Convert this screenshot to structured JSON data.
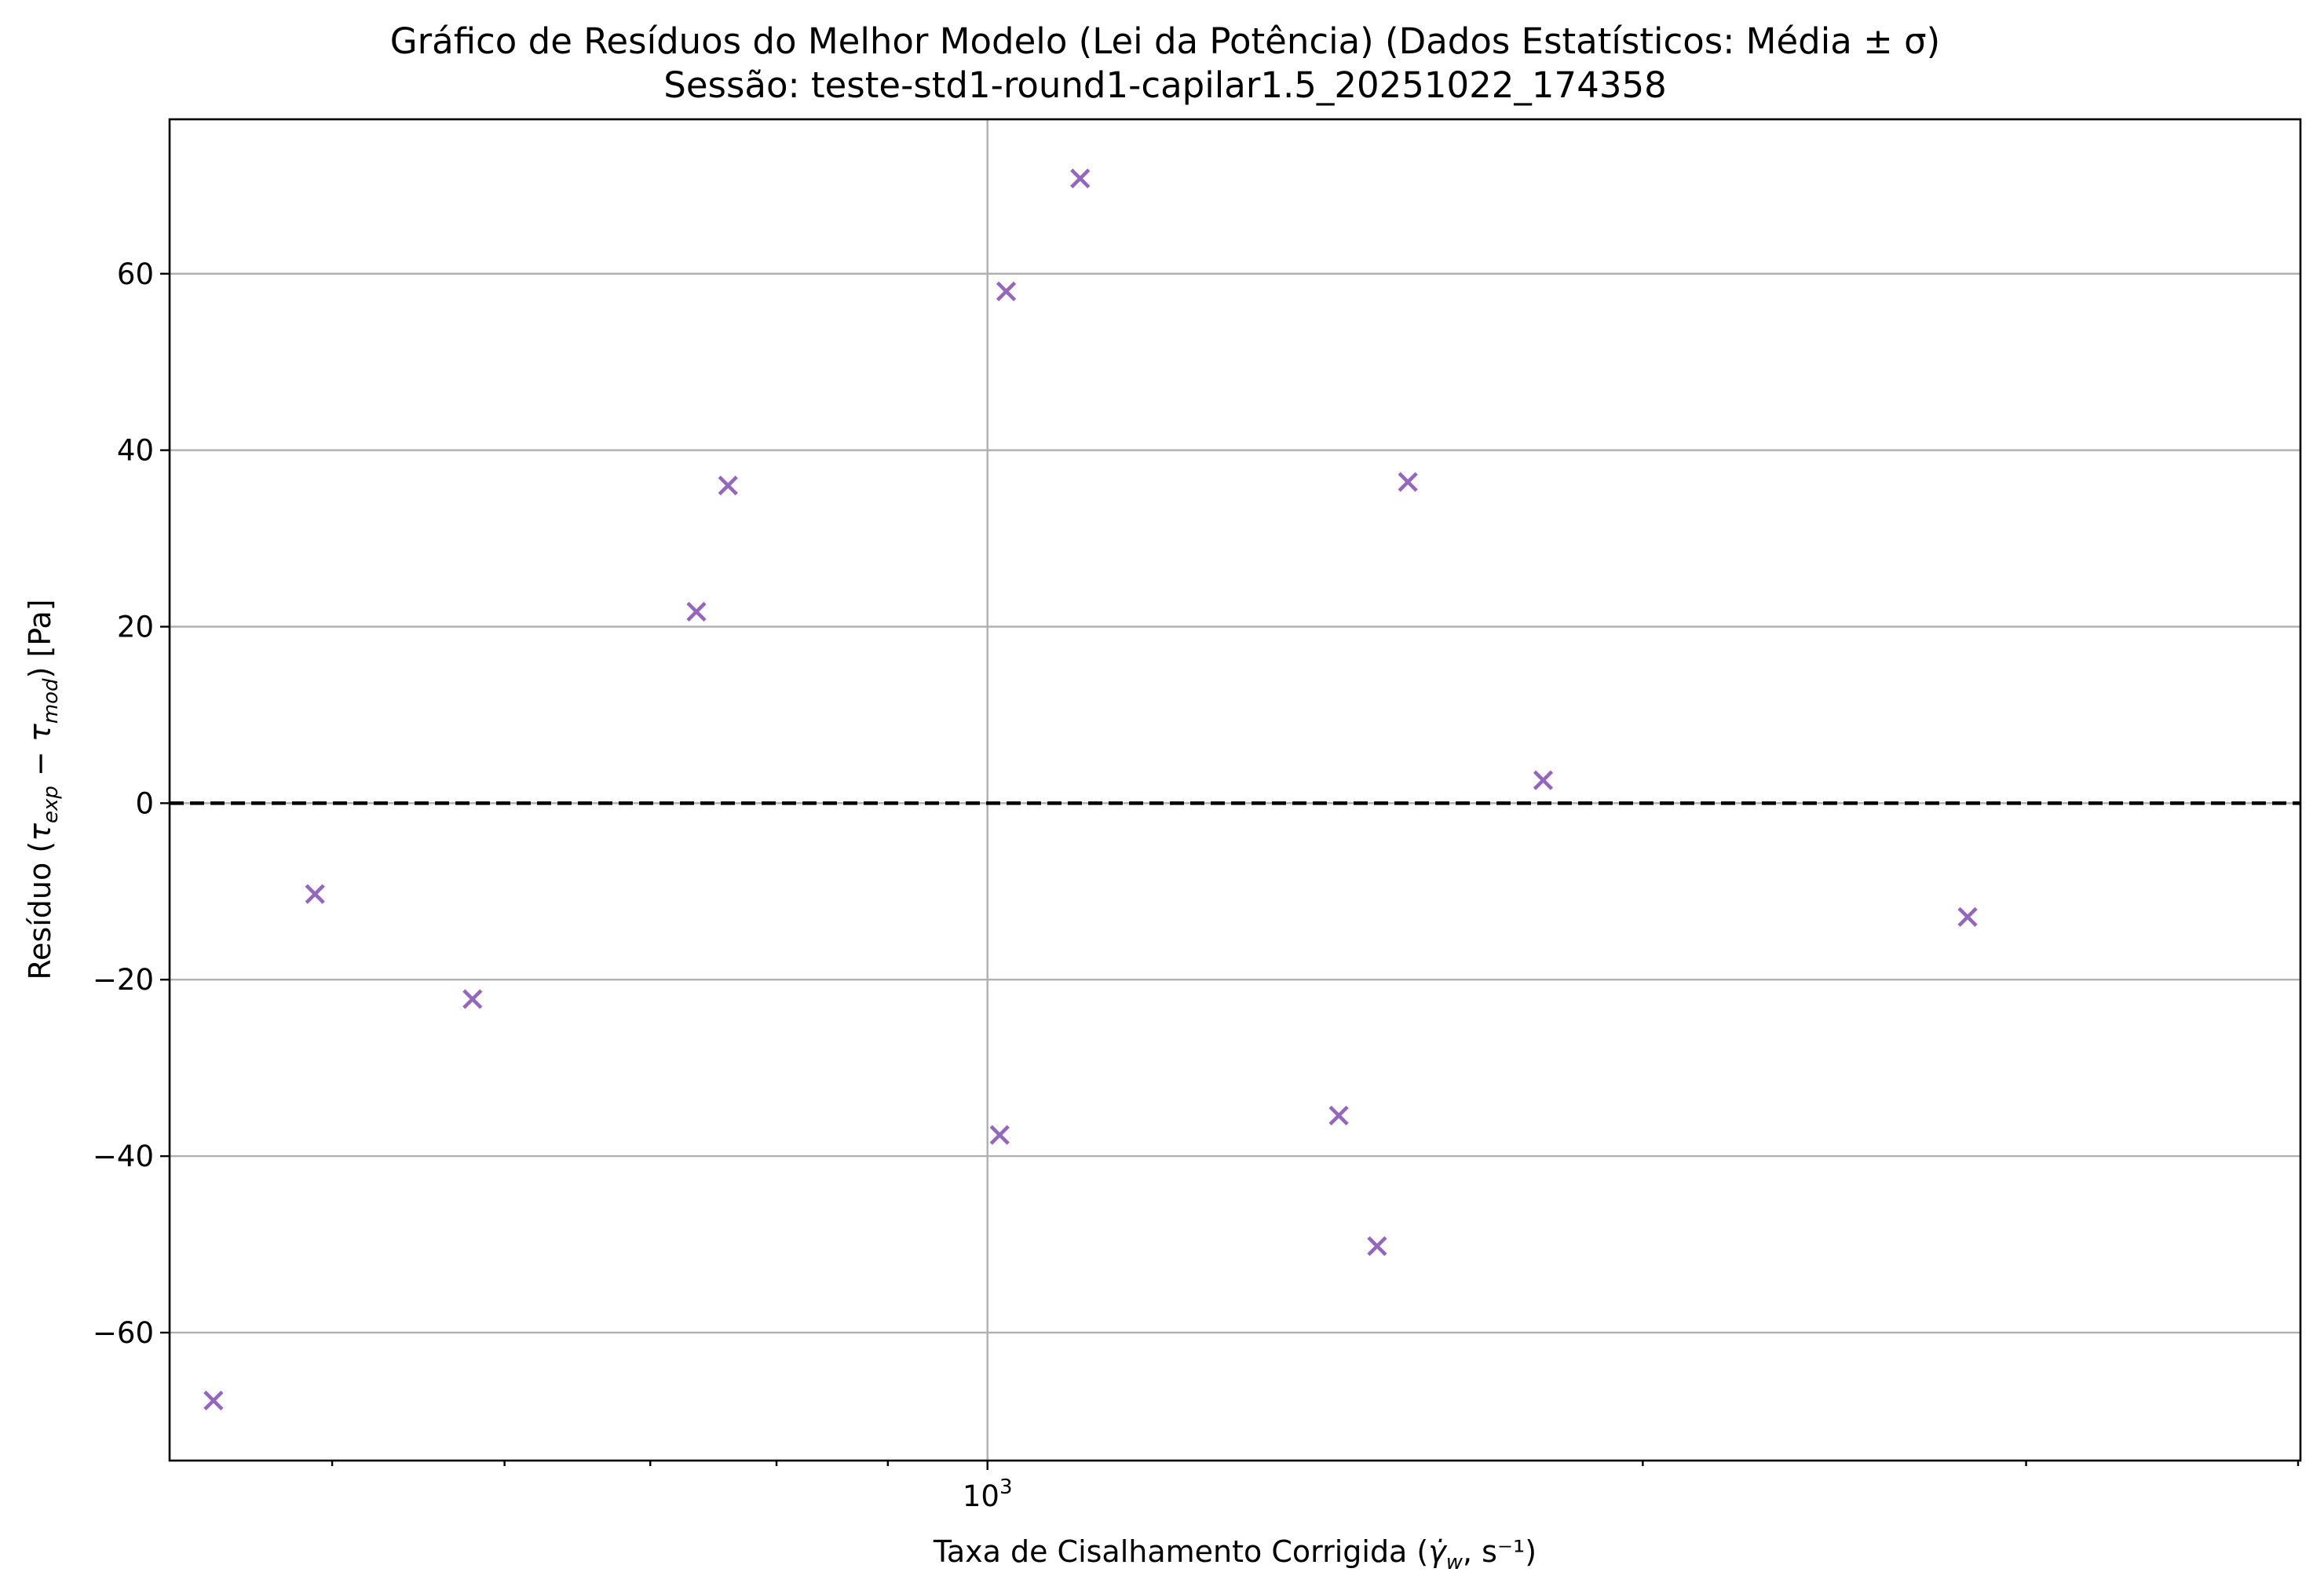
{
  "chart_data": {
    "type": "scatter",
    "title_line1": "Gráfico de Resíduos do Melhor Modelo (Lei da Potência) (Dados Estatísticos: Média ± σ)",
    "title_line2": "Sessão: teste-std1-round1-capilar1.5_20251022_174358",
    "xlabel_prefix": "Taxa de Cisalhamento Corrigida (",
    "xlabel_symbol": "γ̇",
    "xlabel_sub": "w",
    "xlabel_suffix": ", s⁻¹)",
    "ylabel_prefix": "Resíduo (",
    "ylabel_t1": "τ",
    "ylabel_sub1": "exp",
    "ylabel_mid": " − ",
    "ylabel_t2": "τ",
    "ylabel_sub2": "mod",
    "ylabel_suffix": ") [Pa]",
    "x_scale": "log",
    "xlim": [
      421,
      4010
    ],
    "ylim": [
      -74.5,
      77.5
    ],
    "x_major_ticks": [
      {
        "value": 1000,
        "base": "10",
        "exp": "3"
      }
    ],
    "x_minor_ticks": [
      500,
      600,
      700,
      800,
      900,
      2000,
      3000,
      4000
    ],
    "y_ticks": [
      -60,
      -40,
      -20,
      0,
      20,
      40,
      60
    ],
    "y_tick_labels": [
      "−60",
      "−40",
      "−20",
      "0",
      "20",
      "40",
      "60"
    ],
    "grid": true,
    "zero_reference_line": {
      "y": 0,
      "style": "dashed",
      "color": "#000000"
    },
    "marker": "x",
    "marker_color": "#9467bd",
    "points": [
      {
        "x": 441,
        "y": -67.7
      },
      {
        "x": 491,
        "y": -10.3
      },
      {
        "x": 580,
        "y": -22.2
      },
      {
        "x": 735,
        "y": 21.7
      },
      {
        "x": 760,
        "y": 36.0
      },
      {
        "x": 1013,
        "y": -37.6
      },
      {
        "x": 1020,
        "y": 58.0
      },
      {
        "x": 1103,
        "y": 70.8
      },
      {
        "x": 1450,
        "y": -35.4
      },
      {
        "x": 1510,
        "y": -50.2
      },
      {
        "x": 1560,
        "y": 36.4
      },
      {
        "x": 1800,
        "y": 2.6
      },
      {
        "x": 2820,
        "y": -12.9
      }
    ]
  }
}
